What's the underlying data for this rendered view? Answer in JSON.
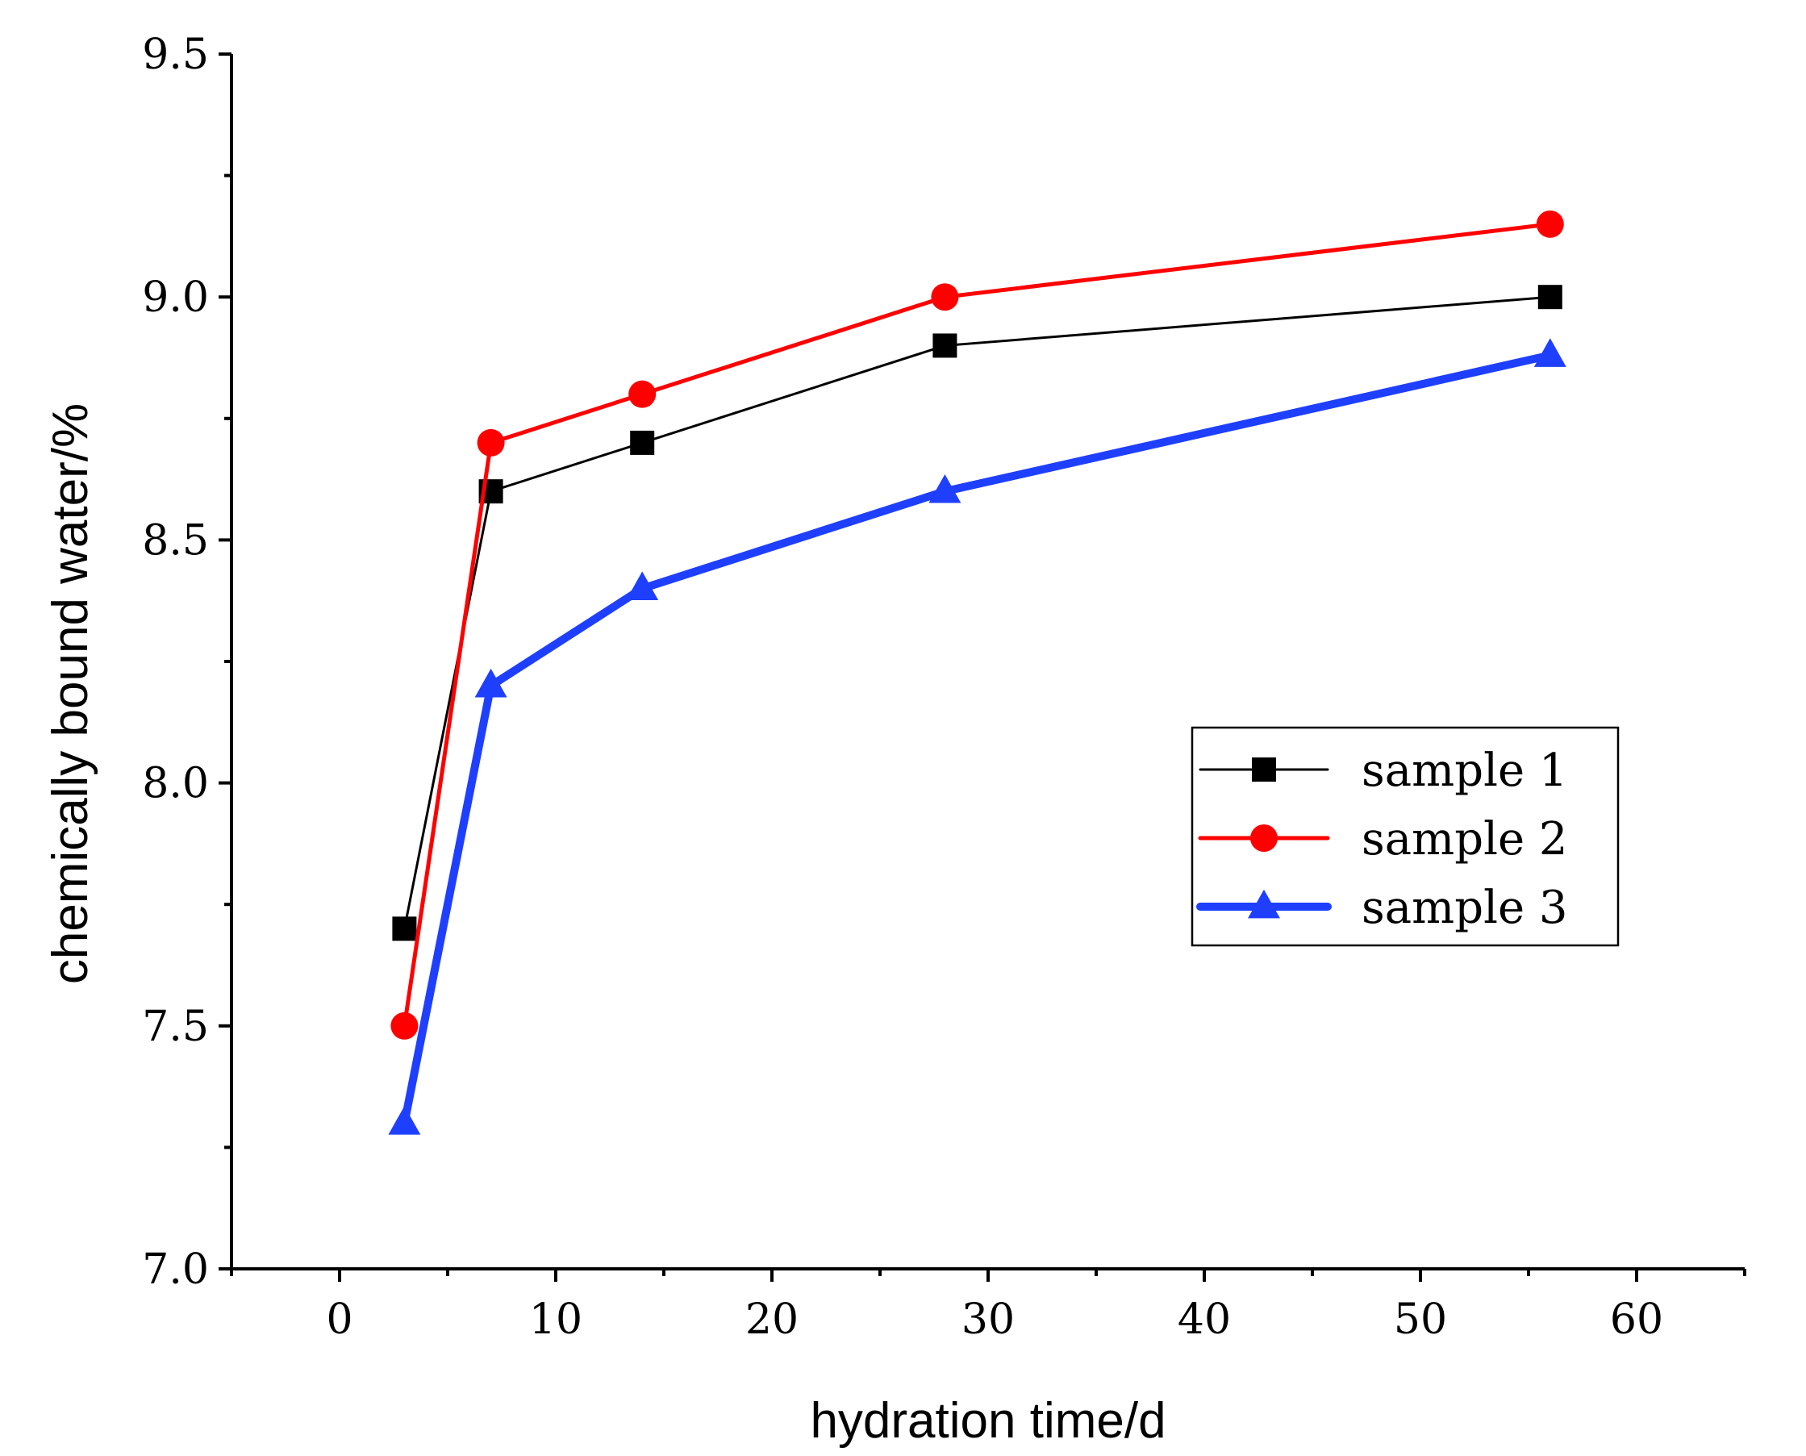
{
  "chart_data": {
    "type": "line",
    "title": "",
    "xlabel": "hydration time/d",
    "ylabel": "chemically bound water/%",
    "xlim": [
      -5,
      65
    ],
    "ylim": [
      7.0,
      9.5
    ],
    "xticks": [
      0,
      10,
      20,
      30,
      40,
      50,
      60
    ],
    "xtick_labels": [
      "0",
      "10",
      "20",
      "30",
      "40",
      "50",
      "60"
    ],
    "yticks": [
      7.0,
      7.5,
      8.0,
      8.5,
      9.0,
      9.5
    ],
    "ytick_labels": [
      "7.0",
      "7.5",
      "8.0",
      "8.5",
      "9.0",
      "9.5"
    ],
    "grid": false,
    "legend_position": "center-right",
    "x": [
      3,
      7,
      14,
      28,
      56
    ],
    "series": [
      {
        "name": "sample 1",
        "values": [
          7.7,
          8.6,
          8.7,
          8.9,
          9.0
        ],
        "color": "#000000",
        "marker": "square"
      },
      {
        "name": "sample 2",
        "values": [
          7.5,
          8.7,
          8.8,
          9.0,
          9.15
        ],
        "color": "#ff0000",
        "marker": "circle"
      },
      {
        "name": "sample 3",
        "values": [
          7.3,
          8.2,
          8.4,
          8.6,
          8.88
        ],
        "color": "#1f3fff",
        "marker": "triangle"
      }
    ]
  }
}
